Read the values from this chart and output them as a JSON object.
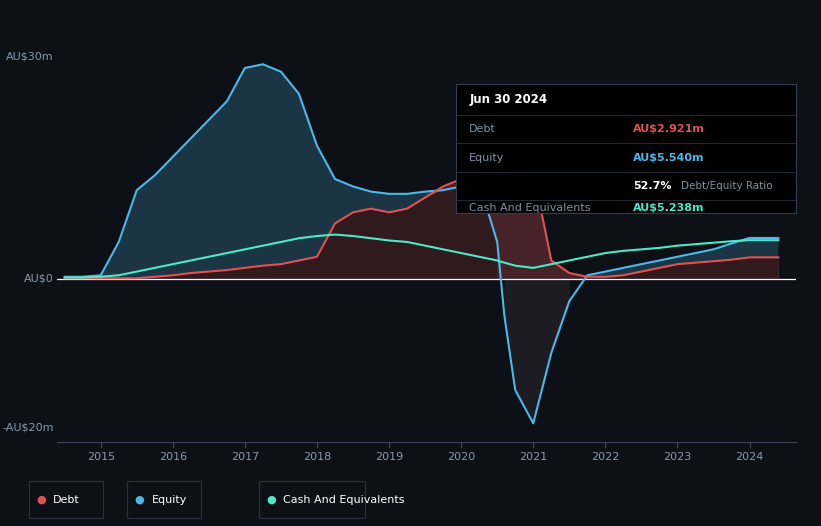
{
  "bg_color": "#0d1117",
  "plot_bg_color": "#0d1117",
  "debt_color": "#e05252",
  "equity_color": "#4db8e8",
  "cash_color": "#4de8c8",
  "grid_color": "#2a3040",
  "zero_line_color": "#ffffff",
  "info_box": {
    "date": "Jun 30 2024",
    "debt_label": "Debt",
    "debt_value": "AU$2.921m",
    "equity_label": "Equity",
    "equity_value": "AU$5.540m",
    "ratio_value": "52.7%",
    "ratio_label": "Debt/Equity Ratio",
    "cash_label": "Cash And Equivalents",
    "cash_value": "AU$5.238m"
  },
  "x_ticks": [
    2015,
    2016,
    2017,
    2018,
    2019,
    2020,
    2021,
    2022,
    2023,
    2024
  ],
  "time": [
    2014.5,
    2014.75,
    2015.0,
    2015.25,
    2015.5,
    2015.75,
    2016.0,
    2016.25,
    2016.5,
    2016.75,
    2017.0,
    2017.25,
    2017.5,
    2017.75,
    2018.0,
    2018.25,
    2018.5,
    2018.75,
    2019.0,
    2019.25,
    2019.5,
    2019.75,
    2020.0,
    2020.25,
    2020.5,
    2020.6,
    2020.75,
    2021.0,
    2021.25,
    2021.5,
    2021.75,
    2022.0,
    2022.25,
    2022.5,
    2022.75,
    2023.0,
    2023.25,
    2023.5,
    2023.75,
    2024.0,
    2024.4
  ],
  "equity": [
    0.3,
    0.3,
    0.5,
    5.0,
    12.0,
    14.0,
    16.5,
    19.0,
    21.5,
    24.0,
    28.5,
    29.0,
    28.0,
    25.0,
    18.0,
    13.5,
    12.5,
    11.8,
    11.5,
    11.5,
    11.8,
    12.0,
    12.5,
    13.0,
    5.0,
    -5.0,
    -15.0,
    -19.5,
    -10.0,
    -3.0,
    0.5,
    1.0,
    1.5,
    2.0,
    2.5,
    3.0,
    3.5,
    4.0,
    4.8,
    5.54,
    5.54
  ],
  "debt": [
    0.1,
    0.1,
    0.1,
    0.1,
    0.1,
    0.3,
    0.5,
    0.8,
    1.0,
    1.2,
    1.5,
    1.8,
    2.0,
    2.5,
    3.0,
    7.5,
    9.0,
    9.5,
    9.0,
    9.5,
    11.0,
    12.5,
    13.5,
    15.0,
    15.5,
    15.5,
    15.2,
    14.5,
    2.5,
    0.8,
    0.3,
    0.3,
    0.5,
    1.0,
    1.5,
    2.0,
    2.2,
    2.4,
    2.6,
    2.921,
    2.921
  ],
  "cash": [
    0.2,
    0.2,
    0.3,
    0.5,
    1.0,
    1.5,
    2.0,
    2.5,
    3.0,
    3.5,
    4.0,
    4.5,
    5.0,
    5.5,
    5.8,
    6.0,
    5.8,
    5.5,
    5.2,
    5.0,
    4.5,
    4.0,
    3.5,
    3.0,
    2.5,
    2.2,
    1.8,
    1.5,
    2.0,
    2.5,
    3.0,
    3.5,
    3.8,
    4.0,
    4.2,
    4.5,
    4.7,
    4.9,
    5.1,
    5.238,
    5.238
  ]
}
